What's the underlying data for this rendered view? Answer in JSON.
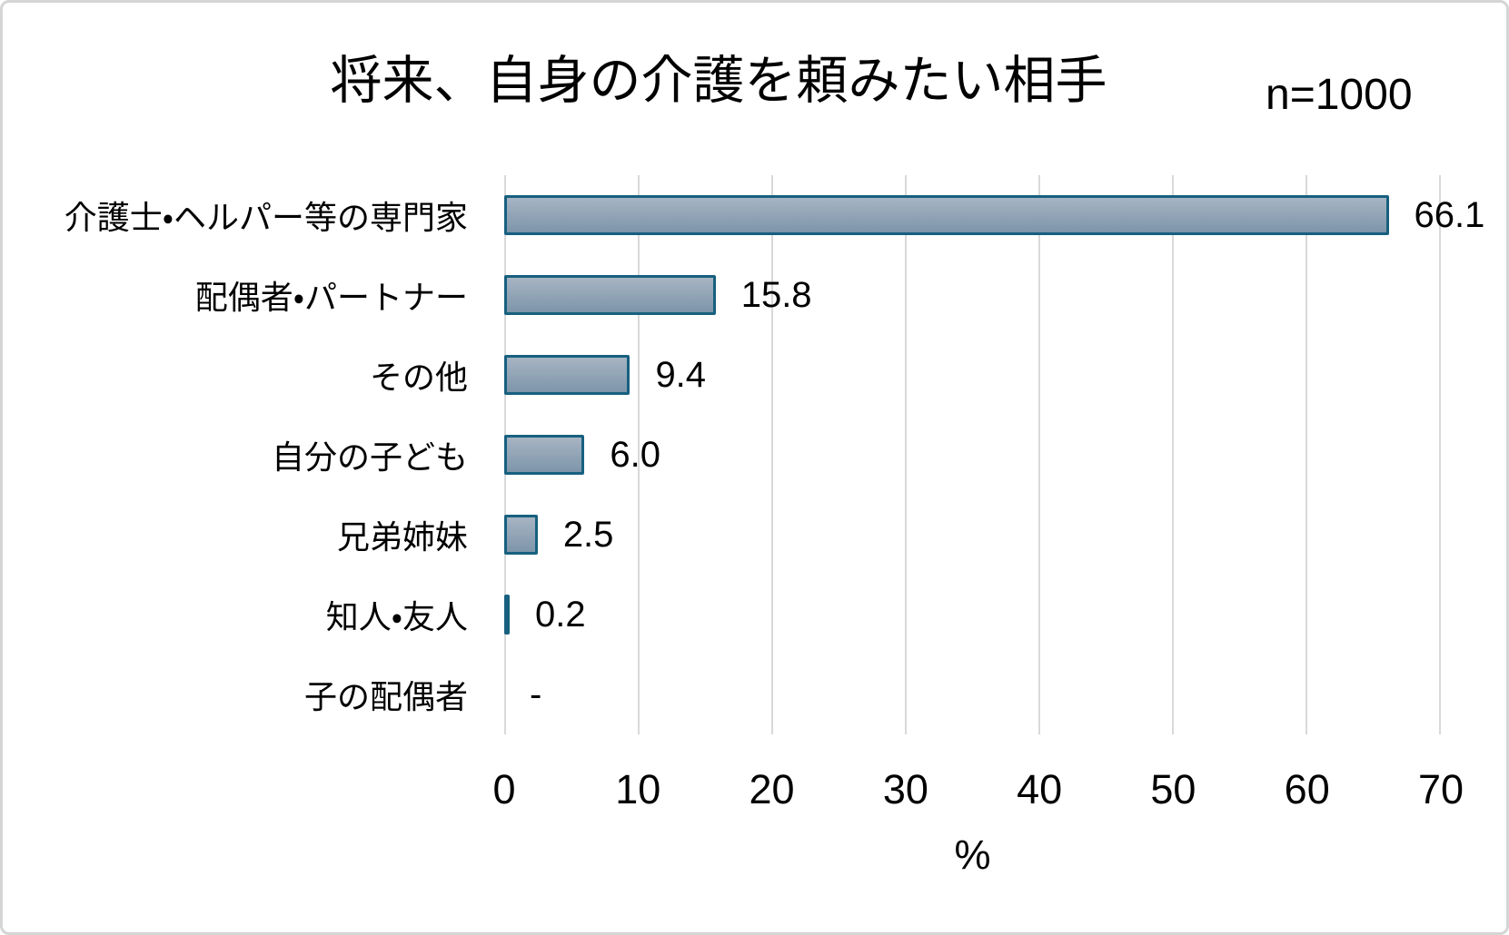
{
  "title": "将来、自身の介護を頼みたい相手",
  "sample_size_label": "n=1000",
  "chart_data": {
    "type": "bar",
    "orientation": "horizontal",
    "title": "将来、自身の介護を頼みたい相手",
    "sample_size": "n=1000",
    "categories": [
      "介護士・ヘルパー等の専門家",
      "配偶者・パートナー",
      "その他",
      "自分の子ども",
      "兄弟姉妹",
      "知人・友人",
      "子の配偶者"
    ],
    "values": [
      66.1,
      15.8,
      9.4,
      6.0,
      2.5,
      0.2,
      null
    ],
    "value_labels": [
      "66.1",
      "15.8",
      "9.4",
      "6.0",
      "2.5",
      "0.2",
      "-"
    ],
    "xlabel": "%",
    "xlim": [
      0,
      70
    ],
    "xticks": [
      0,
      10,
      20,
      30,
      40,
      50,
      60,
      70
    ],
    "grid": "vertical-only",
    "legend": "none",
    "colors": {
      "bar_border": "#17607f",
      "bar_fill_top": "#a7b4c3",
      "bar_fill_bottom": "#7d95aa",
      "gridline": "#d9d9d9",
      "text": "#000000"
    }
  }
}
